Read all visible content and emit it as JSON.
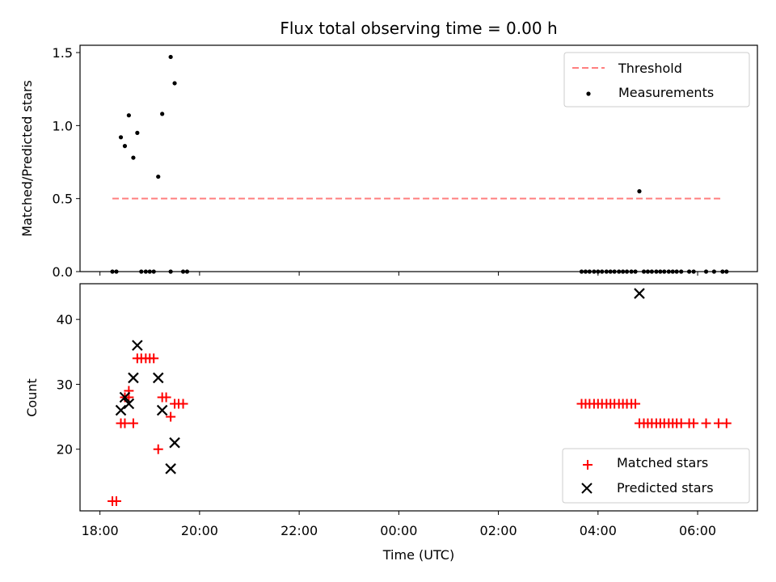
{
  "chart_data": [
    {
      "type": "scatter",
      "title": "Flux total observing time = 0.00 h",
      "xlabel": "",
      "ylabel": "Matched/Predicted stars",
      "ylim": [
        0,
        1.55
      ],
      "yticks": [
        "0.0",
        "0.5",
        "1.0",
        "1.5"
      ],
      "xlim": [
        17.6,
        31.2
      ],
      "legend_position": "top-right",
      "threshold": {
        "name": "Threshold",
        "y": 0.5,
        "x_range": [
          18.25,
          30.5
        ],
        "color": "#ff7f7f",
        "style": "dashed"
      },
      "series": [
        {
          "name": "Measurements",
          "marker": "dot",
          "color": "#000000",
          "x": [
            18.42,
            18.5,
            18.58,
            18.67,
            18.75,
            19.17,
            19.25,
            19.42,
            19.5,
            28.83,
            18.25,
            18.33,
            18.83,
            18.92,
            19.0,
            19.08,
            19.42,
            19.67,
            19.75,
            27.67,
            27.75,
            27.83,
            27.92,
            28.0,
            28.08,
            28.17,
            28.25,
            28.33,
            28.42,
            28.5,
            28.58,
            28.67,
            28.75,
            28.92,
            29.0,
            29.08,
            29.17,
            29.25,
            29.33,
            29.42,
            29.5,
            29.58,
            29.67,
            29.83,
            29.92,
            30.17,
            30.33,
            30.5,
            30.58
          ],
          "y": [
            0.92,
            0.86,
            1.07,
            0.78,
            0.95,
            0.65,
            1.08,
            1.47,
            1.29,
            0.55,
            0,
            0,
            0,
            0,
            0,
            0,
            0,
            0,
            0,
            0,
            0,
            0,
            0,
            0,
            0,
            0,
            0,
            0,
            0,
            0,
            0,
            0,
            0,
            0,
            0,
            0,
            0,
            0,
            0,
            0,
            0,
            0,
            0,
            0,
            0,
            0,
            0,
            0,
            0
          ]
        }
      ]
    },
    {
      "type": "scatter",
      "title": "",
      "xlabel": "Time (UTC)",
      "ylabel": "Count",
      "ylim": [
        10.5,
        45.5
      ],
      "yticks": [
        "20",
        "30",
        "40"
      ],
      "xlim": [
        17.6,
        31.2
      ],
      "xticks": [
        "18:00",
        "20:00",
        "22:00",
        "00:00",
        "02:00",
        "04:00",
        "06:00"
      ],
      "xtick_values": [
        18,
        20,
        22,
        24,
        26,
        28,
        30
      ],
      "legend_position": "bottom-right",
      "series": [
        {
          "name": "Matched stars",
          "marker": "plus",
          "color": "#ff0000",
          "x": [
            18.25,
            18.33,
            18.42,
            18.5,
            18.58,
            18.67,
            18.5,
            18.58,
            18.75,
            18.83,
            18.92,
            19.0,
            19.08,
            19.17,
            19.25,
            19.33,
            19.42,
            19.5,
            19.58,
            19.67,
            27.67,
            27.75,
            27.83,
            27.92,
            28.0,
            28.08,
            28.17,
            28.25,
            28.33,
            28.42,
            28.5,
            28.58,
            28.67,
            28.75,
            28.83,
            28.92,
            29.0,
            29.08,
            29.17,
            29.25,
            29.33,
            29.42,
            29.5,
            29.58,
            29.67,
            29.83,
            29.92,
            30.17,
            30.42,
            30.58
          ],
          "y": [
            12,
            12,
            24,
            24,
            29,
            24,
            28,
            28,
            34,
            34,
            34,
            34,
            34,
            20,
            28,
            28,
            25,
            27,
            27,
            27,
            27,
            27,
            27,
            27,
            27,
            27,
            27,
            27,
            27,
            27,
            27,
            27,
            27,
            27,
            24,
            24,
            24,
            24,
            24,
            24,
            24,
            24,
            24,
            24,
            24,
            24,
            24,
            24,
            24,
            24
          ]
        },
        {
          "name": "Predicted stars",
          "marker": "x",
          "color": "#000000",
          "x": [
            18.42,
            18.5,
            18.58,
            18.67,
            18.75,
            19.17,
            19.25,
            19.42,
            19.5,
            28.83
          ],
          "y": [
            26,
            28,
            27,
            31,
            36,
            31,
            26,
            17,
            21,
            44
          ]
        }
      ]
    }
  ]
}
